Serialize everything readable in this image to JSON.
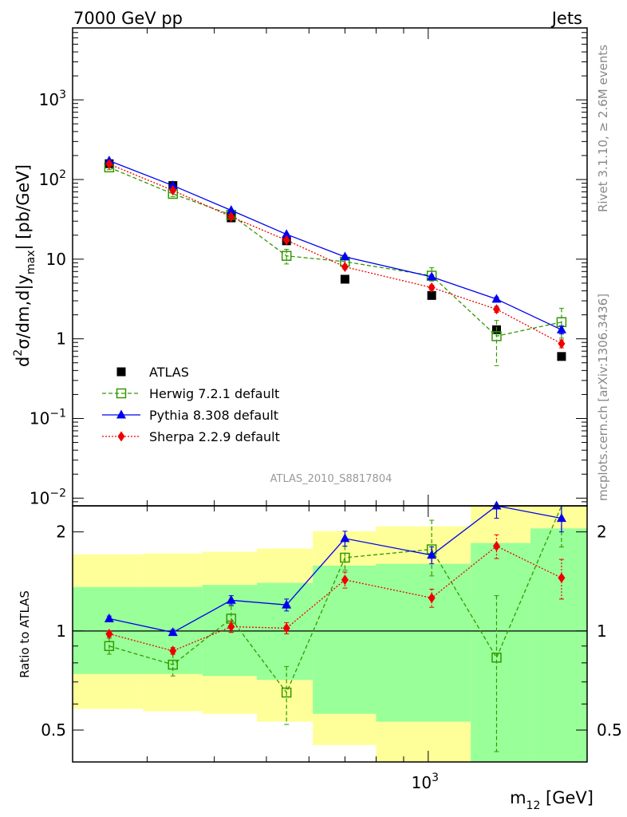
{
  "header": {
    "left": "7000 GeV pp",
    "right": "Jets"
  },
  "side_labels": {
    "rivet": "Rivet 3.1.10, ≥ 2.6M events",
    "mcplots": "mcplots.cern.ch [arXiv:1306.3436]"
  },
  "watermark": "ATLAS_2010_S8817804",
  "colors": {
    "atlas": "#000000",
    "herwig": "#339900",
    "pythia": "#0000ee",
    "sherpa": "#ee0000",
    "band_inner": "#99ff99",
    "band_outer": "#ffff99"
  },
  "chart_data": [
    {
      "type": "line",
      "name": "main",
      "ylabel": {
        "prefix": "d",
        "sup": "2",
        "mid": "σ/dm,d|y",
        "sub": "max",
        "suffix": "| [pb/GeV]"
      },
      "yscale": "log",
      "xscale": "log",
      "xlim": [
        218,
        1975
      ],
      "ylim": [
        0.008,
        8000
      ],
      "ytick_labels": [
        {
          "value": 0.01,
          "base": "10",
          "exp": "−2"
        },
        {
          "value": 0.1,
          "base": "10",
          "exp": "−1"
        },
        {
          "value": 1,
          "base": "1",
          "exp": ""
        },
        {
          "value": 10,
          "base": "10",
          "exp": ""
        },
        {
          "value": 100,
          "base": "10",
          "exp": "2"
        },
        {
          "value": 1000,
          "base": "10",
          "exp": "3"
        }
      ],
      "legend_position": "lower-left",
      "legend": [
        {
          "key": "atlas",
          "label": "ATLAS"
        },
        {
          "key": "herwig",
          "label": "Herwig 7.2.1 default"
        },
        {
          "key": "pythia",
          "label": "Pythia 8.308 default"
        },
        {
          "key": "sherpa",
          "label": "Sherpa 2.2.9 default"
        }
      ],
      "x": [
        255,
        335,
        430,
        545,
        700,
        1015,
        1340,
        1770
      ],
      "series": [
        {
          "key": "atlas",
          "label": "ATLAS",
          "marker": "square",
          "values": [
            158,
            84,
            33,
            17,
            5.6,
            3.5,
            1.3,
            0.6
          ]
        },
        {
          "key": "herwig",
          "label": "Herwig 7.2.1 default",
          "marker": "open-square",
          "line": "dashed",
          "values": [
            142,
            66,
            36,
            11,
            9.3,
            6.2,
            1.08,
            1.62
          ],
          "err_lo": [
            9,
            5,
            3,
            2.3,
            1,
            0.9,
            0.62,
            0.6
          ],
          "err_hi": [
            9,
            5,
            3,
            2.3,
            1,
            1.6,
            0.62,
            0.8
          ]
        },
        {
          "key": "pythia",
          "label": "Pythia 8.308 default",
          "marker": "triangle",
          "line": "solid",
          "values": [
            172,
            84,
            41,
            20.5,
            10.7,
            6,
            3.15,
            1.3
          ],
          "err_lo": [
            2,
            1,
            0.6,
            0.6,
            0.5,
            0.3,
            0.2,
            0.15
          ],
          "err_hi": [
            2,
            1,
            0.6,
            0.6,
            0.5,
            0.3,
            0.2,
            0.15
          ]
        },
        {
          "key": "sherpa",
          "label": "Sherpa 2.2.9 default",
          "marker": "diamond",
          "line": "dotted",
          "values": [
            156,
            73,
            34,
            17.3,
            8,
            4.4,
            2.35,
            0.87
          ],
          "err_lo": [
            2,
            1,
            0.6,
            0.5,
            0.5,
            0.3,
            0.2,
            0.1
          ],
          "err_hi": [
            2,
            1,
            0.6,
            0.5,
            0.5,
            0.3,
            0.2,
            0.1
          ]
        }
      ]
    },
    {
      "type": "line",
      "name": "ratio",
      "ylabel": "Ratio to ATLAS",
      "xlabel": {
        "pre": "m",
        "sub": "12",
        "post": " [GeV]"
      },
      "yscale": "log",
      "xscale": "log",
      "xlim": [
        218,
        1975
      ],
      "ylim": [
        0.4,
        2.4
      ],
      "ytick_labels": [
        {
          "value": 0.5,
          "label": "0.5"
        },
        {
          "value": 1,
          "label": "1"
        },
        {
          "value": 2,
          "label": "2"
        }
      ],
      "xtick_labels": [
        {
          "value": 1000,
          "base": "10",
          "exp": "3"
        }
      ],
      "bins": [
        [
          218,
          295
        ],
        [
          295,
          380
        ],
        [
          380,
          480
        ],
        [
          480,
          610
        ],
        [
          610,
          800
        ],
        [
          800,
          1200
        ],
        [
          1200,
          1550
        ],
        [
          1550,
          1975
        ]
      ],
      "band_inner": [
        [
          0.74,
          1.36
        ],
        [
          0.74,
          1.36
        ],
        [
          0.73,
          1.38
        ],
        [
          0.71,
          1.4
        ],
        [
          0.56,
          1.58
        ],
        [
          0.53,
          1.6
        ],
        [
          0.4,
          1.85
        ],
        [
          0.4,
          2.05
        ]
      ],
      "band_outer": [
        [
          0.58,
          1.71
        ],
        [
          0.57,
          1.72
        ],
        [
          0.56,
          1.74
        ],
        [
          0.53,
          1.78
        ],
        [
          0.45,
          2.01
        ],
        [
          0.4,
          2.08
        ],
        [
          0.4,
          2.4
        ],
        [
          0.4,
          2.4
        ]
      ],
      "x": [
        255,
        335,
        430,
        545,
        700,
        1015,
        1340,
        1770
      ],
      "series": [
        {
          "key": "herwig",
          "marker": "open-square",
          "line": "dashed",
          "values": [
            0.9,
            0.79,
            1.09,
            0.65,
            1.67,
            1.77,
            0.83,
            2.7
          ],
          "err_lo": [
            0.05,
            0.06,
            0.1,
            0.13,
            0.14,
            0.3,
            0.4,
            0.9
          ],
          "err_hi": [
            0.05,
            0.06,
            0.1,
            0.13,
            0.14,
            0.4,
            0.45,
            0.9
          ]
        },
        {
          "key": "pythia",
          "marker": "triangle",
          "line": "solid",
          "values": [
            1.09,
            0.99,
            1.24,
            1.2,
            1.91,
            1.7,
            2.4,
            2.2
          ],
          "err_lo": [
            0.02,
            0.02,
            0.04,
            0.05,
            0.1,
            0.1,
            0.2,
            0.2
          ],
          "err_hi": [
            0.02,
            0.02,
            0.04,
            0.05,
            0.1,
            0.1,
            0.2,
            0.2
          ]
        },
        {
          "key": "sherpa",
          "marker": "diamond",
          "line": "dotted",
          "values": [
            0.98,
            0.87,
            1.03,
            1.02,
            1.43,
            1.26,
            1.81,
            1.45
          ],
          "err_lo": [
            0.02,
            0.02,
            0.04,
            0.04,
            0.08,
            0.08,
            0.15,
            0.2
          ],
          "err_hi": [
            0.02,
            0.02,
            0.04,
            0.04,
            0.08,
            0.08,
            0.15,
            0.2
          ]
        }
      ]
    }
  ]
}
